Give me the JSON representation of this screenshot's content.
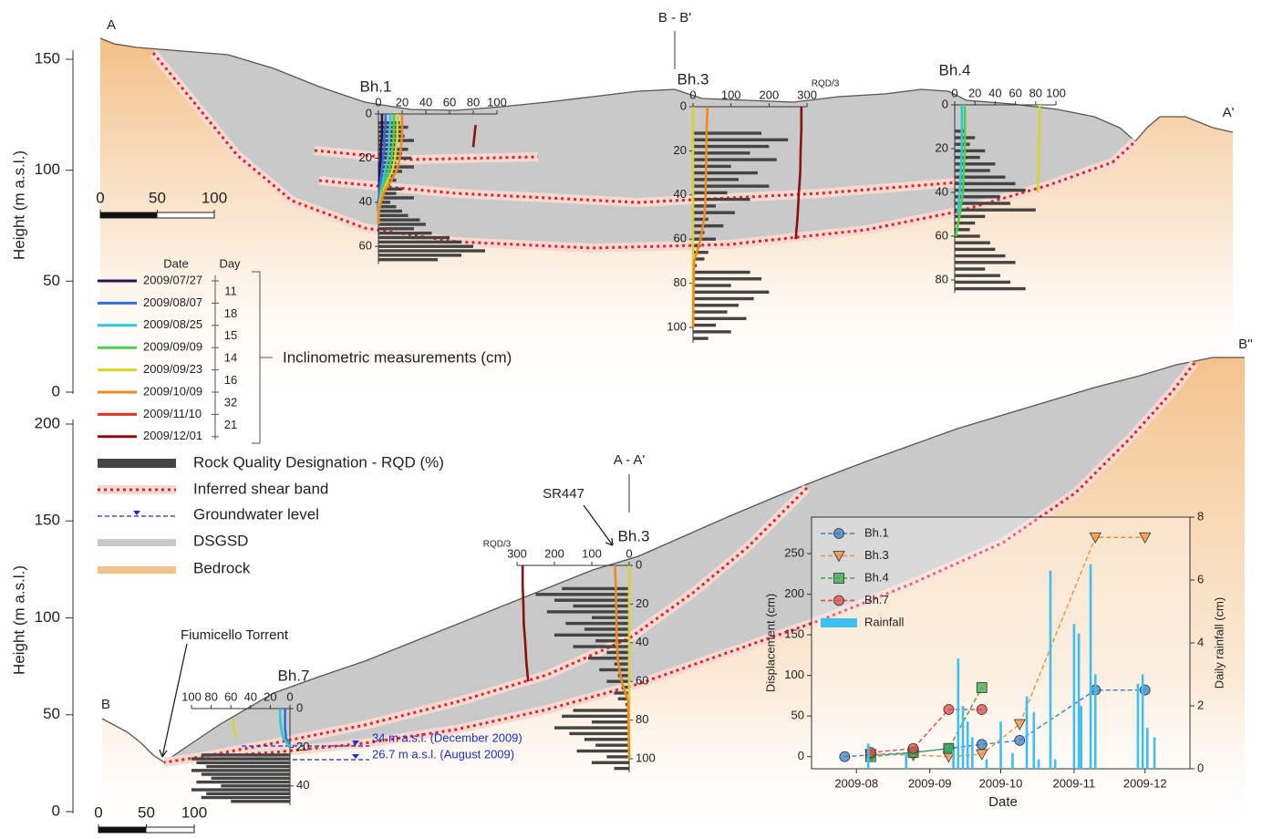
{
  "section_a": {
    "label_start": "A",
    "label_end": "A'",
    "section_label": "B - B'",
    "ylabel": "Height (m a.s.l.)",
    "ylim": [
      0,
      150
    ],
    "yticks": [
      0,
      50,
      100,
      150
    ],
    "scale_ticks": [
      0,
      50,
      100
    ],
    "boreholes": [
      {
        "label": "Bh.1",
        "scale_ticks": [
          0,
          20,
          40,
          60,
          80,
          100
        ],
        "depth_ticks": [
          0,
          20,
          40,
          60
        ],
        "rqd": {
          "depths": [
            4,
            6,
            8,
            10,
            12,
            14,
            16,
            18,
            20,
            22,
            24,
            26,
            28,
            30,
            32,
            34,
            36,
            38,
            40,
            42,
            44,
            46,
            48,
            50,
            52,
            54,
            56,
            58,
            60,
            62,
            64,
            66
          ],
          "values": [
            18,
            25,
            20,
            22,
            30,
            15,
            25,
            20,
            28,
            15,
            30,
            20,
            12,
            15,
            10,
            20,
            15,
            30,
            10,
            15,
            20,
            25,
            35,
            40,
            30,
            45,
            60,
            70,
            80,
            90,
            70,
            50
          ]
        },
        "profile_depths": [
          0,
          5,
          10,
          15,
          20,
          25,
          30,
          35,
          40,
          45,
          50
        ],
        "profiles": [
          [
            3,
            3,
            3,
            2,
            2,
            1,
            1,
            1,
            0,
            0,
            0
          ],
          [
            6,
            6,
            5,
            5,
            4,
            3,
            2,
            1,
            0,
            0,
            0
          ],
          [
            10,
            10,
            9,
            9,
            8,
            6,
            4,
            2,
            1,
            0,
            0
          ],
          [
            13,
            13,
            13,
            12,
            11,
            9,
            6,
            3,
            1,
            0,
            0
          ],
          [
            16,
            16,
            16,
            15,
            14,
            12,
            8,
            4,
            1,
            0,
            0
          ],
          [
            20,
            20,
            20,
            19,
            18,
            16,
            11,
            5,
            2,
            0,
            0
          ],
          null,
          [
            null,
            82,
            81,
            80,
            null,
            null,
            null,
            null,
            null,
            null,
            null
          ]
        ]
      },
      {
        "label": "Bh.3",
        "scale_label": "RQD/3",
        "scale_ticks": [
          0,
          100,
          200,
          300
        ],
        "depth_ticks": [
          0,
          20,
          40,
          60,
          80,
          100
        ],
        "rqd": {
          "depths": [
            12,
            15,
            18,
            21,
            24,
            27,
            30,
            33,
            36,
            39,
            42,
            45,
            48,
            51,
            54,
            57,
            60,
            63,
            66,
            69,
            72,
            75,
            78,
            81,
            84,
            87,
            90,
            93,
            96,
            99,
            102,
            105
          ],
          "values": [
            180,
            250,
            200,
            150,
            220,
            100,
            170,
            120,
            200,
            90,
            150,
            60,
            110,
            40,
            80,
            30,
            60,
            20,
            40,
            30,
            10,
            150,
            180,
            100,
            200,
            160,
            120,
            90,
            140,
            60,
            100,
            40
          ]
        },
        "profile_depths": [
          0,
          10,
          20,
          30,
          40,
          50,
          60,
          70,
          80,
          90,
          100
        ],
        "profiles": [
          null,
          null,
          null,
          null,
          [
            0,
            0,
            0,
            0,
            0,
            0,
            0,
            0,
            0,
            0,
            0
          ],
          [
            38,
            36,
            35,
            34,
            33,
            30,
            20,
            3,
            2,
            1,
            0
          ],
          null,
          [
            285,
            285,
            283,
            282,
            278,
            275,
            270,
            null,
            null,
            null,
            null
          ]
        ]
      },
      {
        "label": "Bh.4",
        "scale_ticks": [
          0,
          20,
          40,
          60,
          80,
          100
        ],
        "depth_ticks": [
          0,
          20,
          40,
          60,
          80
        ],
        "rqd": {
          "depths": [
            12,
            15,
            18,
            21,
            24,
            27,
            30,
            33,
            36,
            39,
            42,
            45,
            48,
            51,
            54,
            57,
            60,
            63,
            66,
            69,
            72,
            75,
            78,
            81,
            84
          ],
          "values": [
            10,
            20,
            15,
            30,
            25,
            40,
            35,
            50,
            60,
            70,
            45,
            55,
            80,
            30,
            20,
            15,
            25,
            35,
            40,
            50,
            60,
            30,
            45,
            55,
            70
          ]
        },
        "profile_depths": [
          0,
          10,
          20,
          30,
          40,
          50,
          60,
          70,
          80
        ],
        "profiles": [
          null,
          null,
          [
            7,
            7,
            7,
            6,
            5,
            3,
            null,
            null,
            null
          ],
          [
            10,
            10,
            10,
            9,
            8,
            5,
            1,
            null,
            null
          ],
          [
            84,
            84,
            83,
            83,
            82,
            null,
            null,
            null,
            null
          ],
          null,
          null,
          null
        ]
      }
    ]
  },
  "section_b": {
    "label_start": "B",
    "label_end": "B''",
    "section_label": "A - A'",
    "road_label": "SR447",
    "river_label": "Fiumicello Torrent",
    "ylabel": "Height (m a.s.l.)",
    "ylim": [
      0,
      200
    ],
    "yticks": [
      0,
      50,
      100,
      150,
      200
    ],
    "scale_ticks": [
      0,
      50,
      100
    ],
    "groundwater": [
      "34 m a.s.l. (December 2009)",
      "26.7 m a.s.l. (August 2009)"
    ],
    "boreholes": [
      {
        "label": "Bh.7",
        "scale_ticks": [
          0,
          20,
          40,
          60,
          80,
          100
        ],
        "depth_ticks": [
          0,
          20,
          40
        ],
        "rqd": {
          "depths": [
            24,
            26,
            28,
            30,
            32,
            34,
            36,
            38,
            40,
            42,
            44,
            46,
            48
          ],
          "values": [
            90,
            100,
            95,
            85,
            100,
            90,
            80,
            95,
            70,
            100,
            85,
            90,
            60
          ]
        },
        "profile_depths": [
          0,
          5,
          10,
          15,
          20
        ],
        "profiles": [
          null,
          [
            5,
            5,
            5,
            4,
            0
          ],
          [
            10,
            10,
            9,
            7,
            0
          ],
          null,
          [
            null,
            58,
            57,
            55,
            null
          ],
          null,
          null,
          null
        ]
      }
    ]
  },
  "legend": {
    "date_header": "Date",
    "day_header": "Day",
    "dates": [
      "2009/07/27",
      "2009/08/07",
      "2009/08/25",
      "2009/09/09",
      "2009/09/23",
      "2009/10/09",
      "2009/11/10",
      "2009/12/01"
    ],
    "colors": [
      "#2a1050",
      "#2f6fe0",
      "#2ec8d8",
      "#4ccf4c",
      "#d6d62a",
      "#f08a1c",
      "#e8301c",
      "#8b1010"
    ],
    "days": [
      11,
      18,
      15,
      14,
      16,
      32,
      21
    ],
    "brace_label": "Inclinometric measurements (cm)",
    "items": [
      "Rock Quality Designation - RQD (%)",
      "Inferred shear band",
      "Groundwater level",
      "DSGSD",
      "Bedrock"
    ]
  },
  "chart_data": {
    "type": "line",
    "xlabel": "Date",
    "ylabel": "Displacement (cm)",
    "y2label": "Daily rainfall (cm)",
    "x": [
      "2009-07-27",
      "2009-08-07",
      "2009-08-25",
      "2009-09-09",
      "2009-09-23",
      "2009-10-09",
      "2009-11-10",
      "2009-12-01"
    ],
    "xlim": [
      "2009-07-13",
      "2009-12-20"
    ],
    "xticks": [
      {
        "value": "2009-08-01",
        "label": "2009-08"
      },
      {
        "value": "2009-09-01",
        "label": "2009-09"
      },
      {
        "value": "2009-10-01",
        "label": "2009-10"
      },
      {
        "value": "2009-11-01",
        "label": "2009-11"
      },
      {
        "value": "2009-12-01",
        "label": "2009-12"
      }
    ],
    "ylim": [
      -15,
      295
    ],
    "yticks": [
      0,
      50,
      100,
      150,
      200,
      250
    ],
    "y2lim": [
      0,
      8
    ],
    "y2ticks": [
      0,
      2,
      4,
      6,
      8
    ],
    "legend": "upper left",
    "series": [
      {
        "name": "Bh.1",
        "color": "#3b7dc4",
        "marker": "circle",
        "values": [
          0,
          2,
          5,
          10,
          15,
          20,
          82,
          82
        ]
      },
      {
        "name": "Bh.3",
        "color": "#f0903a",
        "marker": "triangle-down",
        "values": [
          null,
          3,
          2,
          0,
          3,
          40,
          270,
          270
        ]
      },
      {
        "name": "Bh.4",
        "color": "#3aa84a",
        "marker": "square",
        "values": [
          null,
          0,
          5,
          10,
          85,
          null,
          null,
          null
        ]
      },
      {
        "name": "Bh.7",
        "color": "#e04848",
        "marker": "circle",
        "values": [
          null,
          5,
          10,
          58,
          58,
          null,
          null,
          null
        ]
      },
      {
        "name": "Rainfall",
        "type": "bar",
        "axis": "y2",
        "color": "#3fbef0",
        "x": [
          "2009-08-06",
          "2009-08-22",
          "2009-09-11",
          "2009-09-13",
          "2009-09-15",
          "2009-09-17",
          "2009-09-19",
          "2009-09-25",
          "2009-10-01",
          "2009-10-06",
          "2009-10-12",
          "2009-10-15",
          "2009-10-17",
          "2009-10-22",
          "2009-10-24",
          "2009-11-01",
          "2009-11-03",
          "2009-11-04",
          "2009-11-08",
          "2009-11-10",
          "2009-11-28",
          "2009-11-30",
          "2009-12-02",
          "2009-12-05"
        ],
        "values": [
          0.8,
          0.5,
          0.6,
          3.5,
          2.0,
          1.5,
          1.0,
          0.3,
          1.5,
          0.5,
          2.3,
          1.8,
          0.3,
          6.3,
          0.3,
          4.6,
          4.3,
          2.0,
          6.5,
          3.0,
          2.7,
          3.0,
          1.3,
          1.0
        ]
      }
    ]
  }
}
